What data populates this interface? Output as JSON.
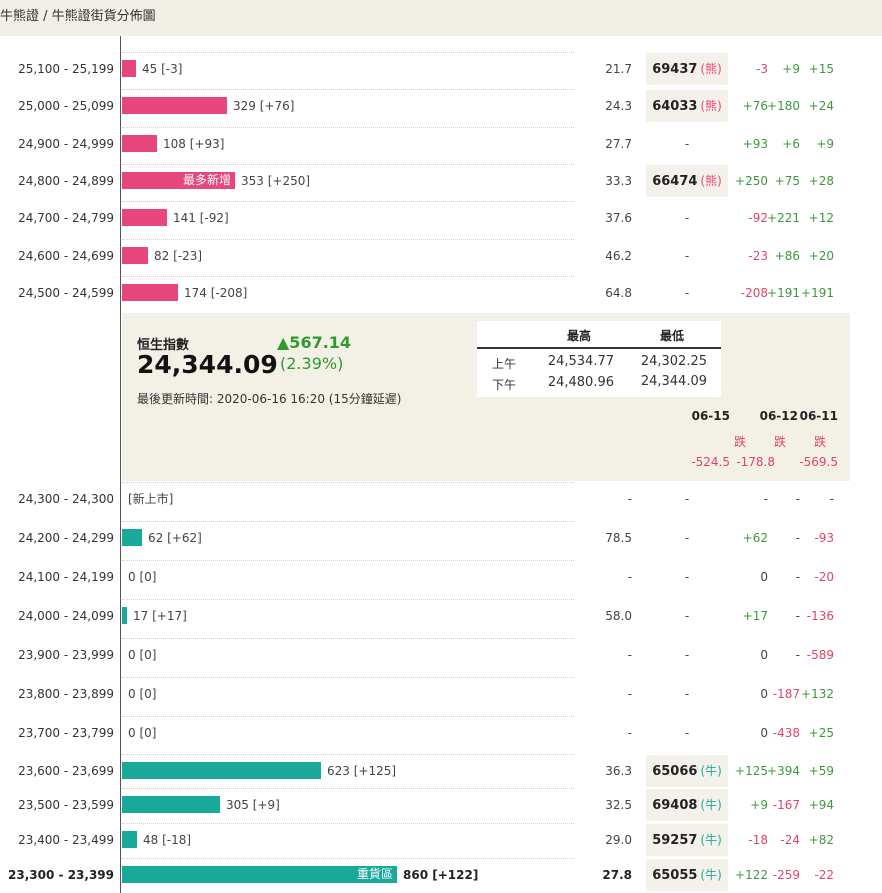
{
  "header": {
    "title": "牛熊證 / 牛熊證街貨分佈圖"
  },
  "top_rows": [
    {
      "range": "25,100 - 25,199",
      "type": "bear",
      "bar_value": 45,
      "count": "45 [-3]",
      "inner_label": "",
      "ratio": "21.7",
      "code": "69437",
      "tag": "(熊)",
      "chg": [
        "-3",
        "+9",
        "+15"
      ],
      "chg_sign": [
        "neg",
        "pos",
        "pos"
      ]
    },
    {
      "range": "25,000 - 25,099",
      "type": "bear",
      "bar_value": 329,
      "count": "329 [+76]",
      "inner_label": "",
      "ratio": "24.3",
      "code": "64033",
      "tag": "(熊)",
      "chg": [
        "+76",
        "+180",
        "+24"
      ],
      "chg_sign": [
        "pos",
        "pos",
        "pos"
      ]
    },
    {
      "range": "24,900 - 24,999",
      "type": "bear",
      "bar_value": 108,
      "count": "108 [+93]",
      "inner_label": "",
      "ratio": "27.7",
      "code": "-",
      "tag": "",
      "chg": [
        "+93",
        "+6",
        "+9"
      ],
      "chg_sign": [
        "pos",
        "pos",
        "pos"
      ]
    },
    {
      "range": "24,800 - 24,899",
      "type": "bear",
      "bar_value": 353,
      "count": "353 [+250]",
      "inner_label": "最多新增",
      "ratio": "33.3",
      "code": "66474",
      "tag": "(熊)",
      "chg": [
        "+250",
        "+75",
        "+28"
      ],
      "chg_sign": [
        "pos",
        "pos",
        "pos"
      ]
    },
    {
      "range": "24,700 - 24,799",
      "type": "bear",
      "bar_value": 141,
      "count": "141 [-92]",
      "inner_label": "",
      "ratio": "37.6",
      "code": "-",
      "tag": "",
      "chg": [
        "-92",
        "+221",
        "+12"
      ],
      "chg_sign": [
        "neg",
        "pos",
        "pos"
      ]
    },
    {
      "range": "24,600 - 24,699",
      "type": "bear",
      "bar_value": 82,
      "count": "82 [-23]",
      "inner_label": "",
      "ratio": "46.2",
      "code": "-",
      "tag": "",
      "chg": [
        "-23",
        "+86",
        "+20"
      ],
      "chg_sign": [
        "neg",
        "pos",
        "pos"
      ]
    },
    {
      "range": "24,500 - 24,599",
      "type": "bear",
      "bar_value": 174,
      "count": "174 [-208]",
      "inner_label": "",
      "ratio": "64.8",
      "code": "-",
      "tag": "",
      "chg": [
        "-208",
        "+191",
        "+191"
      ],
      "chg_sign": [
        "neg",
        "pos",
        "pos"
      ]
    }
  ],
  "index_panel": {
    "name": "恒生指數",
    "value": "24,344.09",
    "change": "▲567.14",
    "change_pct": "(2.39%)",
    "update": "最後更新時間: 2020-06-16 16:20 (15分鐘延遲)",
    "high_label": "最高",
    "low_label": "最低",
    "am_label": "上午",
    "pm_label": "下午",
    "am_high": "24,534.77",
    "am_low": "24,302.25",
    "pm_high": "24,480.96",
    "pm_low": "24,344.09",
    "dates": [
      "06-15",
      "06-12",
      "06-11"
    ],
    "date_labels": [
      "跌",
      "跌",
      "跌"
    ],
    "date_values": [
      "-524.5",
      "-178.8",
      "-569.5"
    ]
  },
  "bottom_rows": [
    {
      "range": "24,300 - 24,300",
      "type": "bull",
      "bar_value": 0,
      "count": "[新上市]",
      "inner_label": "",
      "ratio": "-",
      "code": "-",
      "tag": "",
      "chg": [
        "-",
        "-",
        "-"
      ],
      "chg_sign": [
        "neu",
        "neu",
        "neu"
      ]
    },
    {
      "range": "24,200 - 24,299",
      "type": "bull",
      "bar_value": 62,
      "count": "62 [+62]",
      "inner_label": "",
      "ratio": "78.5",
      "code": "-",
      "tag": "",
      "chg": [
        "+62",
        "-",
        "-93"
      ],
      "chg_sign": [
        "pos",
        "neu",
        "neg"
      ]
    },
    {
      "range": "24,100 - 24,199",
      "type": "bull",
      "bar_value": 0,
      "count": "0 [0]",
      "inner_label": "",
      "ratio": "-",
      "code": "-",
      "tag": "",
      "chg": [
        "0",
        "-",
        "-20"
      ],
      "chg_sign": [
        "neu",
        "neu",
        "neg"
      ]
    },
    {
      "range": "24,000 - 24,099",
      "type": "bull",
      "bar_value": 17,
      "count": "17 [+17]",
      "inner_label": "",
      "ratio": "58.0",
      "code": "-",
      "tag": "",
      "chg": [
        "+17",
        "-",
        "-136"
      ],
      "chg_sign": [
        "pos",
        "neu",
        "neg"
      ]
    },
    {
      "range": "23,900 - 23,999",
      "type": "bull",
      "bar_value": 0,
      "count": "0 [0]",
      "inner_label": "",
      "ratio": "-",
      "code": "-",
      "tag": "",
      "chg": [
        "0",
        "-",
        "-589"
      ],
      "chg_sign": [
        "neu",
        "neu",
        "neg"
      ]
    },
    {
      "range": "23,800 - 23,899",
      "type": "bull",
      "bar_value": 0,
      "count": "0 [0]",
      "inner_label": "",
      "ratio": "-",
      "code": "-",
      "tag": "",
      "chg": [
        "0",
        "-187",
        "+132"
      ],
      "chg_sign": [
        "neu",
        "neg",
        "pos"
      ]
    },
    {
      "range": "23,700 - 23,799",
      "type": "bull",
      "bar_value": 0,
      "count": "0 [0]",
      "inner_label": "",
      "ratio": "-",
      "code": "-",
      "tag": "",
      "chg": [
        "0",
        "-438",
        "+25"
      ],
      "chg_sign": [
        "neu",
        "neg",
        "pos"
      ]
    },
    {
      "range": "23,600 - 23,699",
      "type": "bull",
      "bar_value": 623,
      "count": "623 [+125]",
      "inner_label": "",
      "ratio": "36.3",
      "code": "65066",
      "tag": "(牛)",
      "chg": [
        "+125",
        "+394",
        "+59"
      ],
      "chg_sign": [
        "pos",
        "pos",
        "pos"
      ]
    },
    {
      "range": "23,500 - 23,599",
      "type": "bull",
      "bar_value": 305,
      "count": "305 [+9]",
      "inner_label": "",
      "ratio": "32.5",
      "code": "69408",
      "tag": "(牛)",
      "chg": [
        "+9",
        "-167",
        "+94"
      ],
      "chg_sign": [
        "pos",
        "neg",
        "pos"
      ]
    },
    {
      "range": "23,400 - 23,499",
      "type": "bull",
      "bar_value": 48,
      "count": "48 [-18]",
      "inner_label": "",
      "ratio": "29.0",
      "code": "59257",
      "tag": "(牛)",
      "chg": [
        "-18",
        "-24",
        "+82"
      ],
      "chg_sign": [
        "neg",
        "neg",
        "pos"
      ]
    },
    {
      "range": "23,300 - 23,399",
      "type": "bull",
      "bar_value": 860,
      "count": "860 [+122]",
      "inner_label": "重貨區",
      "ratio": "27.8",
      "code": "65055",
      "tag": "(牛)",
      "chg": [
        "+122",
        "-259",
        "-22"
      ],
      "chg_sign": [
        "pos",
        "neg",
        "neg"
      ]
    }
  ]
}
